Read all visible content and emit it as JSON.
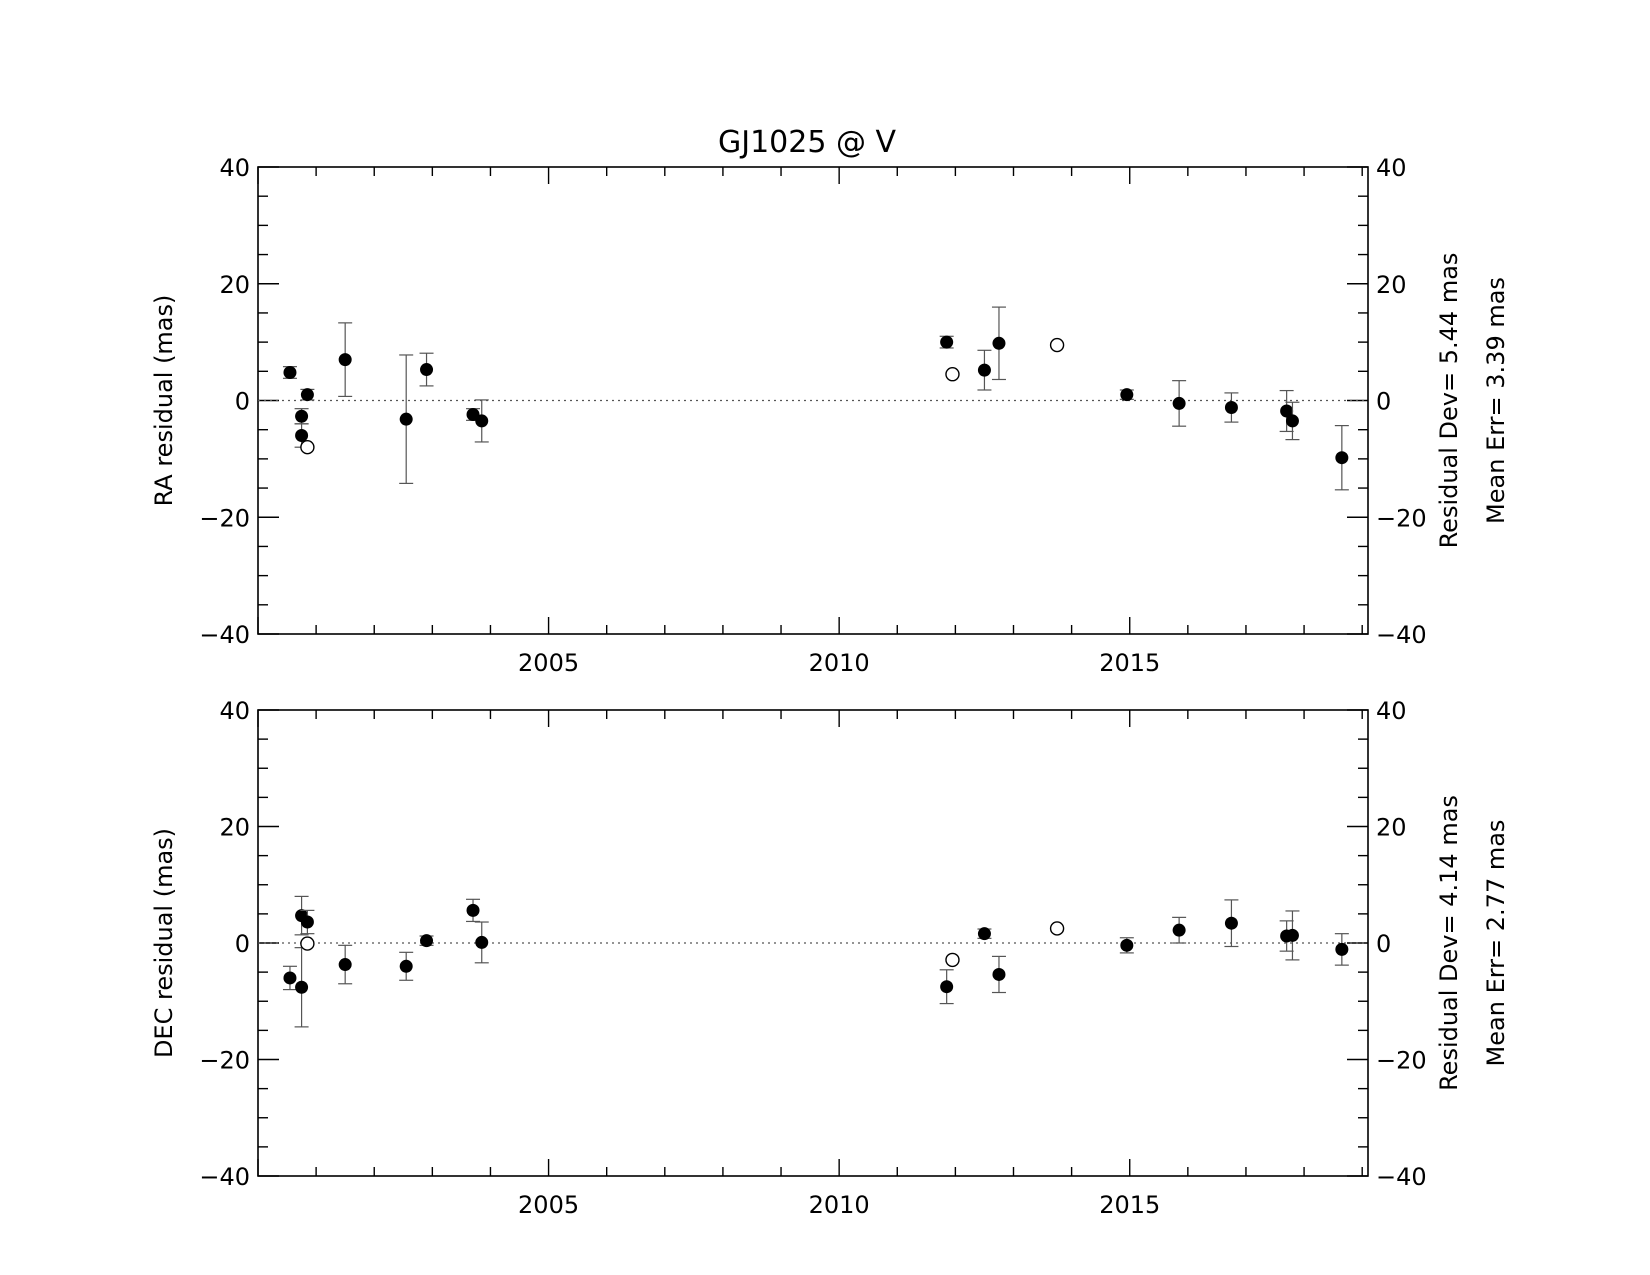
{
  "title": "GJ1025 @ V",
  "chart_data": [
    {
      "type": "scatter",
      "ylabel": "RA residual (mas)",
      "xlim": [
        2000.0,
        2019.1
      ],
      "ylim": [
        -40,
        40
      ],
      "xticks": [
        2005,
        2010,
        2015
      ],
      "xtick_labels": [
        "2005",
        "2010",
        "2015"
      ],
      "yticks": [
        -40,
        -20,
        0,
        20,
        40
      ],
      "ytick_labels": [
        "−40",
        "−20",
        "0",
        "20",
        "40"
      ],
      "zero_line": "dotted",
      "stats": [
        "Residual Dev=   5.44  mas",
        "Mean  Err=  3.39  mas"
      ],
      "series": [
        {
          "marker": "filled",
          "points": [
            {
              "x": 2000.55,
              "y": 4.8,
              "err": 1.0
            },
            {
              "x": 2000.75,
              "y": -2.7,
              "err": 1.3
            },
            {
              "x": 2000.75,
              "y": -6.0,
              "err": 2.0
            },
            {
              "x": 2000.85,
              "y": 1.0,
              "err": 0.9
            },
            {
              "x": 2001.5,
              "y": 7.0,
              "err": 6.3
            },
            {
              "x": 2002.55,
              "y": -3.2,
              "err": 11.0
            },
            {
              "x": 2002.9,
              "y": 5.3,
              "err": 2.8
            },
            {
              "x": 2003.7,
              "y": -2.4,
              "err": 1.0
            },
            {
              "x": 2003.85,
              "y": -3.5,
              "err": 3.6
            },
            {
              "x": 2011.85,
              "y": 10.0,
              "err": 1.0
            },
            {
              "x": 2012.5,
              "y": 5.2,
              "err": 3.4
            },
            {
              "x": 2012.75,
              "y": 9.8,
              "err": 6.2
            },
            {
              "x": 2014.95,
              "y": 1.0,
              "err": 0.8
            },
            {
              "x": 2015.85,
              "y": -0.5,
              "err": 3.9
            },
            {
              "x": 2016.75,
              "y": -1.2,
              "err": 2.5
            },
            {
              "x": 2017.7,
              "y": -1.8,
              "err": 3.5
            },
            {
              "x": 2017.8,
              "y": -3.5,
              "err": 3.2
            },
            {
              "x": 2018.65,
              "y": -9.8,
              "err": 5.5
            }
          ]
        },
        {
          "marker": "open",
          "points": [
            {
              "x": 2000.85,
              "y": -8.0
            },
            {
              "x": 2011.95,
              "y": 4.5
            },
            {
              "x": 2013.75,
              "y": 9.5
            }
          ]
        }
      ]
    },
    {
      "type": "scatter",
      "ylabel": "DEC residual (mas)",
      "xlim": [
        2000.0,
        2019.1
      ],
      "ylim": [
        -40,
        40
      ],
      "xticks": [
        2005,
        2010,
        2015
      ],
      "xtick_labels": [
        "2005",
        "2010",
        "2015"
      ],
      "yticks": [
        -40,
        -20,
        0,
        20,
        40
      ],
      "ytick_labels": [
        "−40",
        "−20",
        "0",
        "20",
        "40"
      ],
      "zero_line": "dotted",
      "stats": [
        "Residual Dev=   4.14  mas",
        "Mean  Err=  2.77  mas"
      ],
      "series": [
        {
          "marker": "filled",
          "points": [
            {
              "x": 2000.55,
              "y": -6.0,
              "err": 2.0
            },
            {
              "x": 2000.75,
              "y": 4.7,
              "err": 3.3
            },
            {
              "x": 2000.75,
              "y": -7.6,
              "err": 6.8
            },
            {
              "x": 2000.85,
              "y": 3.6,
              "err": 2.0
            },
            {
              "x": 2001.5,
              "y": -3.7,
              "err": 3.3
            },
            {
              "x": 2002.55,
              "y": -4.0,
              "err": 2.4
            },
            {
              "x": 2002.9,
              "y": 0.4,
              "err": 0.8
            },
            {
              "x": 2003.7,
              "y": 5.6,
              "err": 1.9
            },
            {
              "x": 2003.85,
              "y": 0.1,
              "err": 3.5
            },
            {
              "x": 2011.85,
              "y": -7.5,
              "err": 2.9
            },
            {
              "x": 2012.5,
              "y": 1.6,
              "err": 0.8
            },
            {
              "x": 2012.75,
              "y": -5.4,
              "err": 3.1
            },
            {
              "x": 2014.95,
              "y": -0.4,
              "err": 1.3
            },
            {
              "x": 2015.85,
              "y": 2.2,
              "err": 2.2
            },
            {
              "x": 2016.75,
              "y": 3.4,
              "err": 4.0
            },
            {
              "x": 2017.7,
              "y": 1.2,
              "err": 2.6
            },
            {
              "x": 2017.8,
              "y": 1.3,
              "err": 4.2
            },
            {
              "x": 2018.65,
              "y": -1.1,
              "err": 2.7
            }
          ]
        },
        {
          "marker": "open",
          "points": [
            {
              "x": 2000.85,
              "y": -0.1
            },
            {
              "x": 2011.95,
              "y": -2.9
            },
            {
              "x": 2013.75,
              "y": 2.5
            }
          ]
        }
      ]
    }
  ]
}
